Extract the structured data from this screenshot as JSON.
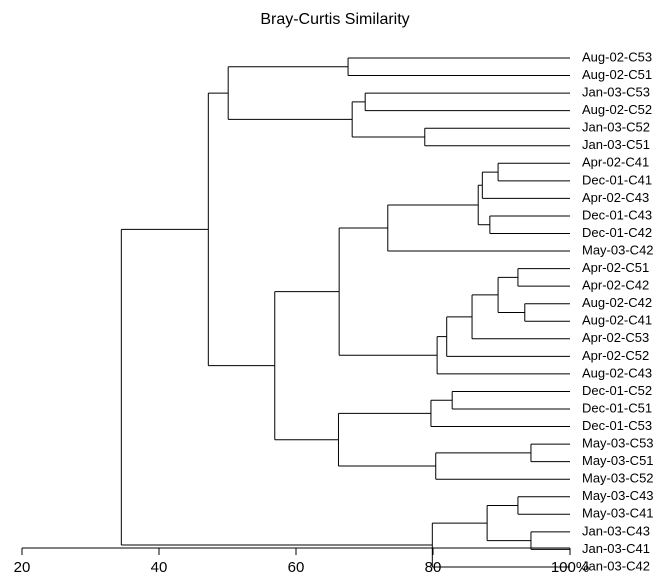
{
  "chart_data": {
    "type": "dendrogram",
    "title": "Bray-Curtis Similarity",
    "xlim": [
      20,
      100
    ],
    "xticks": [
      20,
      40,
      60,
      80,
      {
        "value": 100,
        "label": "100%"
      }
    ],
    "color": "#000000",
    "tree": {
      "height": 34.5,
      "children": [
        {
          "height": 47.2,
          "children": [
            {
              "height": 50.1,
              "children": [
                {
                  "height": 67.6,
                  "children": [
                    {
                      "label": "Aug-02-C53"
                    },
                    {
                      "label": "Aug-02-C51"
                    }
                  ]
                },
                {
                  "height": 68.2,
                  "children": [
                    {
                      "height": 70.1,
                      "children": [
                        {
                          "label": "Jan-03-C53"
                        },
                        {
                          "label": "Aug-02-C52"
                        }
                      ]
                    },
                    {
                      "height": 78.8,
                      "children": [
                        {
                          "label": "Jan-03-C52"
                        },
                        {
                          "label": "Jan-03-C51"
                        }
                      ]
                    }
                  ]
                }
              ]
            },
            {
              "height": 56.9,
              "children": [
                {
                  "height": 66.3,
                  "children": [
                    {
                      "height": 73.4,
                      "children": [
                        {
                          "height": 86.6,
                          "children": [
                            {
                              "height": 87.2,
                              "children": [
                                {
                                  "height": 89.5,
                                  "children": [
                                    {
                                      "label": "Apr-02-C41"
                                    },
                                    {
                                      "label": "Dec-01-C41"
                                    }
                                  ]
                                },
                                {
                                  "label": "Apr-02-C43"
                                }
                              ]
                            },
                            {
                              "height": 88.3,
                              "children": [
                                {
                                  "label": "Dec-01-C43"
                                },
                                {
                                  "label": "Dec-01-C42"
                                }
                              ]
                            }
                          ]
                        },
                        {
                          "label": "May-03-C42"
                        }
                      ]
                    },
                    {
                      "height": 80.6,
                      "children": [
                        {
                          "height": 82.0,
                          "children": [
                            {
                              "height": 85.7,
                              "children": [
                                {
                                  "height": 89.5,
                                  "children": [
                                    {
                                      "height": 92.4,
                                      "children": [
                                        {
                                          "label": "Apr-02-C51"
                                        },
                                        {
                                          "label": "Apr-02-C42"
                                        }
                                      ]
                                    },
                                    {
                                      "height": 93.4,
                                      "children": [
                                        {
                                          "label": "Aug-02-C42"
                                        },
                                        {
                                          "label": "Aug-02-C41"
                                        }
                                      ]
                                    }
                                  ]
                                },
                                {
                                  "label": "Apr-02-C53"
                                }
                              ]
                            },
                            {
                              "label": "Apr-02-C52"
                            }
                          ]
                        },
                        {
                          "label": "Aug-02-C43"
                        }
                      ]
                    }
                  ]
                },
                {
                  "height": 66.2,
                  "children": [
                    {
                      "height": 79.7,
                      "children": [
                        {
                          "height": 82.8,
                          "children": [
                            {
                              "label": "Dec-01-C52"
                            },
                            {
                              "label": "Dec-01-C51"
                            }
                          ]
                        },
                        {
                          "label": "Dec-01-C53"
                        }
                      ]
                    },
                    {
                      "height": 80.4,
                      "children": [
                        {
                          "height": 94.3,
                          "children": [
                            {
                              "label": "May-03-C53"
                            },
                            {
                              "label": "May-03-C51"
                            }
                          ]
                        },
                        {
                          "label": "May-03-C52"
                        }
                      ]
                    }
                  ]
                }
              ]
            }
          ]
        },
        {
          "height": 79.9,
          "children": [
            {
              "height": 87.9,
              "children": [
                {
                  "height": 92.4,
                  "children": [
                    {
                      "label": "May-03-C43"
                    },
                    {
                      "label": "May-03-C41"
                    }
                  ]
                },
                {
                  "height": 94.3,
                  "children": [
                    {
                      "label": "Jan-03-C43"
                    },
                    {
                      "label": "Jan-03-C41"
                    }
                  ]
                }
              ]
            },
            {
              "label": "Jan-03-C42"
            }
          ]
        }
      ]
    }
  }
}
